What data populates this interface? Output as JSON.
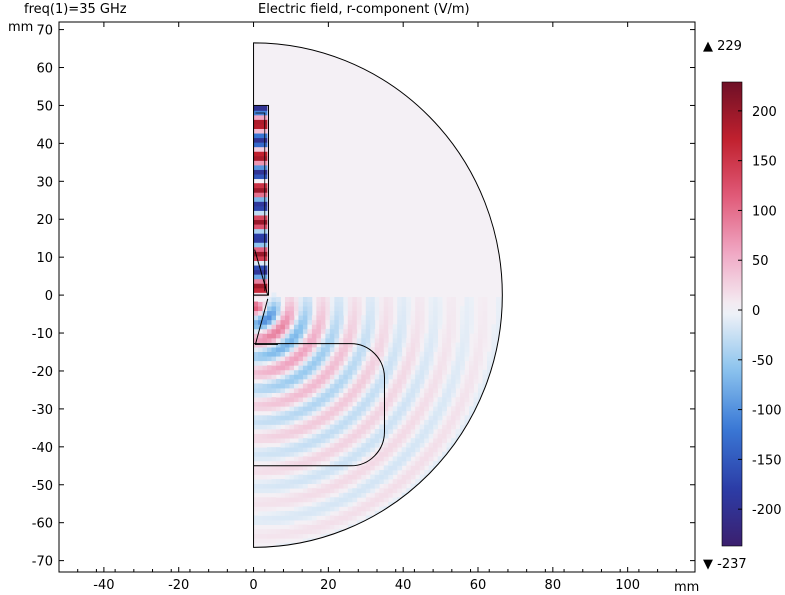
{
  "header": {
    "parameter": "freq(1)=35 GHz",
    "title": "Electric field, r-component (V/m)"
  },
  "chart_data": {
    "type": "heatmap",
    "title": "Electric field, r-component (V/m)",
    "subtitle": "freq(1)=35 GHz",
    "x_unit": "mm",
    "y_unit": "mm",
    "xlim": [
      -52,
      118
    ],
    "ylim": [
      -73,
      72
    ],
    "x_ticks": [
      -40,
      -20,
      0,
      20,
      40,
      60,
      80,
      100
    ],
    "y_ticks": [
      70,
      60,
      50,
      40,
      30,
      20,
      10,
      0,
      -10,
      -20,
      -30,
      -40,
      -50,
      -60,
      -70
    ],
    "geometry": {
      "outer_radius": 66.5,
      "horn_upper": {
        "r0": 0,
        "r1": 4,
        "z0": 0,
        "z1": 50
      },
      "lower_body": {
        "r0": 0,
        "r1": 35,
        "z0": -45,
        "z1": -12.8,
        "corner_radius": 9
      }
    },
    "colorbar": {
      "max_label": "229",
      "min_label": "-237",
      "max": 229,
      "min": -237,
      "ticks": [
        200,
        150,
        100,
        50,
        0,
        -50,
        -100,
        -150,
        -200
      ],
      "colormap": [
        "#3b1f6e",
        "#2c3ea8",
        "#3a79d6",
        "#8cc4ee",
        "#f4f4f8",
        "#f0a8c4",
        "#e05a78",
        "#c0202e",
        "#6e1026"
      ]
    }
  }
}
